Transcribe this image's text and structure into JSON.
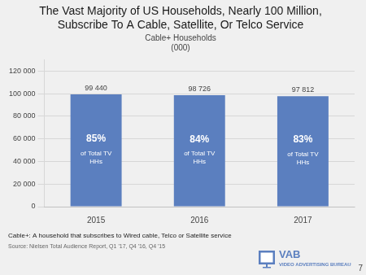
{
  "chart_data": {
    "type": "bar",
    "title": "The Vast Majority of US Households, Nearly 100 Million,\nSubscribe To A Cable, Satellite, Or Telco Service",
    "subtitle": "Cable+ Households\n(000)",
    "categories": [
      "2015",
      "2016",
      "2017"
    ],
    "values": [
      99440,
      98726,
      97812
    ],
    "value_labels": [
      "99 440",
      "98 726",
      "97 812"
    ],
    "data_labels": true,
    "color": "#5b7fbf",
    "ylim": [
      0,
      130000
    ],
    "yticks": [
      0,
      {
        "value": 20000,
        "label": "20 000"
      },
      {
        "value": 40000,
        "label": "40 000"
      },
      {
        "value": 60000,
        "label": "60 000"
      },
      {
        "value": 80000,
        "label": "80 000"
      },
      {
        "value": 100000,
        "label": "100 000"
      },
      {
        "value": 120000,
        "label": "120 000"
      }
    ],
    "grid": true,
    "annotations": [
      {
        "category": "2015",
        "texts": [
          "85%",
          "of Total TV\nHHs"
        ]
      },
      {
        "category": "2016",
        "texts": [
          "84%",
          "of Total TV\nHHs"
        ]
      },
      {
        "category": "2017",
        "texts": [
          "83%",
          "of Total TV\nHHs"
        ]
      }
    ],
    "footnote": "Cable+: A household that subscribes to Wired cable, Telco or Satellite service",
    "source": "Source: Nielsen Total Audience Report, Q1 '17, Q4 '16, Q4 '15",
    "page_number": "7",
    "logo": [
      "VAB",
      "VIDEO ADVERTISING BUREAU"
    ]
  }
}
